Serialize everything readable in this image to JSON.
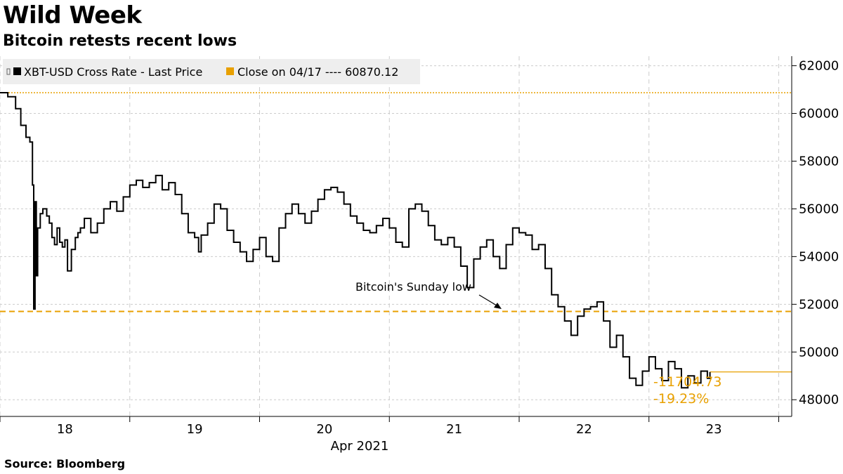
{
  "chart_data": {
    "type": "line",
    "title": "Wild Week",
    "subtitle": "Bitcoin retests recent lows",
    "source": "Source: Bloomberg",
    "xlabel": "Apr 2021",
    "x_ticks": [
      "18",
      "19",
      "20",
      "21",
      "22",
      "23"
    ],
    "y_ticks": [
      48000,
      50000,
      52000,
      54000,
      56000,
      58000,
      60000,
      62000
    ],
    "y_tick_labels": [
      "48000",
      "50000",
      "52000",
      "54000",
      "56000",
      "58000",
      "60000",
      "62000"
    ],
    "ylim": [
      47300,
      62400
    ],
    "xlim": [
      17.5,
      23.6
    ],
    "y_axis_side": "right",
    "grid": true,
    "legend": {
      "placement": "top-left",
      "items": [
        {
          "label": "XBT-USD Cross Rate - Last Price",
          "color": "#000000"
        },
        {
          "label": "Close on 04/17 ---- 60870.12",
          "color": "#e8a000"
        }
      ]
    },
    "series": [
      {
        "name": "XBT-USD Cross Rate - Last Price",
        "color": "#000000",
        "x": [
          17.5,
          17.56,
          17.62,
          17.66,
          17.7,
          17.73,
          17.75,
          17.76,
          17.77,
          17.78,
          17.79,
          17.81,
          17.83,
          17.86,
          17.88,
          17.9,
          17.92,
          17.94,
          17.96,
          17.98,
          18.0,
          18.02,
          18.05,
          18.08,
          18.1,
          18.12,
          18.15,
          18.2,
          18.25,
          18.3,
          18.35,
          18.4,
          18.45,
          18.5,
          18.55,
          18.6,
          18.65,
          18.7,
          18.75,
          18.8,
          18.85,
          18.9,
          18.95,
          19.0,
          19.03,
          19.05,
          19.1,
          19.15,
          19.2,
          19.25,
          19.3,
          19.35,
          19.4,
          19.45,
          19.5,
          19.55,
          19.6,
          19.65,
          19.7,
          19.75,
          19.8,
          19.85,
          19.9,
          19.95,
          20.0,
          20.05,
          20.1,
          20.15,
          20.2,
          20.25,
          20.3,
          20.35,
          20.4,
          20.45,
          20.5,
          20.55,
          20.6,
          20.65,
          20.7,
          20.75,
          20.8,
          20.85,
          20.9,
          20.95,
          21.0,
          21.05,
          21.1,
          21.15,
          21.2,
          21.25,
          21.3,
          21.35,
          21.4,
          21.45,
          21.5,
          21.55,
          21.6,
          21.65,
          21.7,
          21.75,
          21.8,
          21.85,
          21.9,
          21.95,
          22.0,
          22.05,
          22.1,
          22.15,
          22.2,
          22.25,
          22.3,
          22.35,
          22.4,
          22.45,
          22.5,
          22.55,
          22.6,
          22.65,
          22.7,
          22.75,
          22.8,
          22.85,
          22.9,
          22.95,
          22.97
        ],
        "values": [
          60870,
          60700,
          60200,
          59500,
          59000,
          58800,
          57000,
          51800,
          56300,
          53200,
          55200,
          55800,
          56000,
          55700,
          55400,
          54800,
          54500,
          55200,
          54600,
          54400,
          54700,
          53400,
          54300,
          54800,
          55000,
          55200,
          55600,
          55000,
          55400,
          56000,
          56300,
          55900,
          56500,
          57000,
          57200,
          56900,
          57100,
          57400,
          56800,
          57100,
          56600,
          55800,
          55000,
          54800,
          54200,
          54900,
          55400,
          56200,
          56000,
          55100,
          54600,
          54200,
          53800,
          54300,
          54800,
          54000,
          53800,
          55200,
          55800,
          56200,
          55800,
          55400,
          55900,
          56400,
          56800,
          56900,
          56700,
          56200,
          55700,
          55400,
          55100,
          55000,
          55300,
          55600,
          55200,
          54600,
          54400,
          56000,
          56200,
          55900,
          55300,
          54700,
          54500,
          54800,
          54400,
          53600,
          52700,
          53900,
          54400,
          54700,
          54000,
          53500,
          54500,
          55200,
          55000,
          54900,
          54300,
          54500,
          53500,
          52400,
          51900,
          51300,
          50700,
          51500,
          51800,
          51900,
          52100,
          51300,
          50200,
          50700,
          49800,
          48900,
          48600,
          49200,
          49800,
          49300,
          48800,
          49600,
          49300,
          48500,
          49000,
          48700,
          49200,
          48900,
          49160
        ]
      }
    ],
    "reference_lines": [
      {
        "label": "Close on 04/17",
        "value": 60870.12,
        "style": "dotted",
        "color": "#e8a000"
      },
      {
        "label": "Bitcoin's Sunday low",
        "value": 51700,
        "style": "dashed",
        "color": "#e8a000"
      },
      {
        "label": "last price marker",
        "value": 49165.39,
        "style": "solid",
        "color": "#e8a000"
      }
    ],
    "annotations": [
      {
        "text": "Bitcoin's Sunday low"
      },
      {
        "text": "-11704.73",
        "color": "#e8a000"
      },
      {
        "text": "-19.23%",
        "color": "#e8a000"
      }
    ]
  }
}
